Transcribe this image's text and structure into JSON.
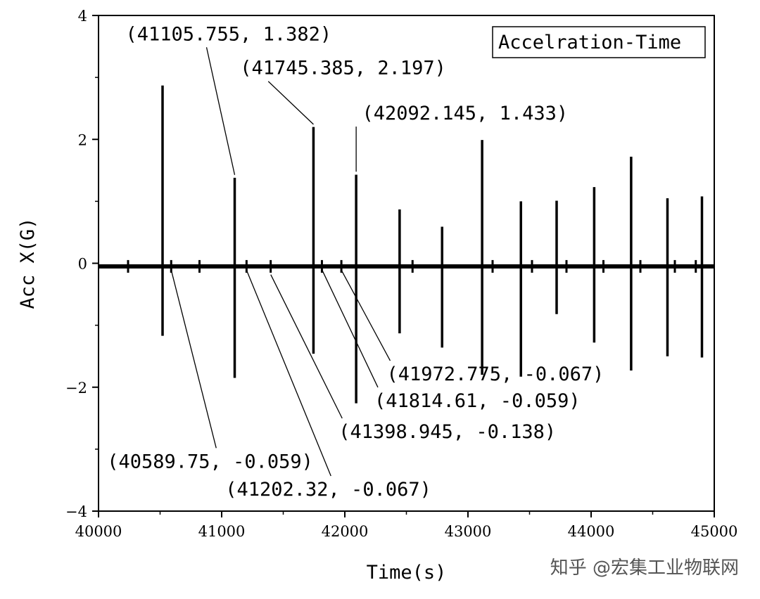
{
  "chart_data": {
    "type": "line",
    "title": "Accelration-Time",
    "xlabel": "Time(s)",
    "ylabel": "Acc X(G)",
    "xlim": [
      40000,
      45000
    ],
    "ylim": [
      -4,
      4
    ],
    "x_ticks": [
      40000,
      41000,
      42000,
      43000,
      44000,
      45000
    ],
    "x_tick_labels": [
      "40000",
      "41000",
      "42000",
      "43000",
      "44000",
      "45000"
    ],
    "y_ticks": [
      -4,
      -2,
      0,
      2,
      4
    ],
    "y_tick_labels": [
      "−4",
      "−2",
      "0",
      "2",
      "4"
    ],
    "grid": false,
    "baseline": -0.05,
    "spikes": [
      {
        "x": 40520,
        "ymax": 2.87,
        "ymin": -1.17
      },
      {
        "x": 41105.755,
        "ymax": 1.38,
        "ymin": -1.85
      },
      {
        "x": 41745.385,
        "ymax": 2.2,
        "ymin": -1.46
      },
      {
        "x": 42092.145,
        "ymax": 1.43,
        "ymin": -2.26
      },
      {
        "x": 42445,
        "ymax": 0.87,
        "ymin": -1.13
      },
      {
        "x": 42790,
        "ymax": 0.59,
        "ymin": -1.36
      },
      {
        "x": 43115,
        "ymax": 1.99,
        "ymin": -1.8
      },
      {
        "x": 43430,
        "ymax": 1.0,
        "ymin": -1.83
      },
      {
        "x": 43720,
        "ymax": 1.01,
        "ymin": -0.82
      },
      {
        "x": 44025,
        "ymax": 1.23,
        "ymin": -1.28
      },
      {
        "x": 44325,
        "ymax": 1.72,
        "ymin": -1.73
      },
      {
        "x": 44620,
        "ymax": 1.05,
        "ymin": -1.5
      },
      {
        "x": 44900,
        "ymax": 1.08,
        "ymin": -1.52
      }
    ],
    "small_bumps": [
      40240,
      40590,
      40820,
      41202,
      41398,
      41814,
      41972,
      42550,
      43200,
      43520,
      43800,
      44100,
      44400,
      44680,
      44850
    ],
    "annotations": [
      {
        "label": "(41105.755, 1.382)",
        "point_x": 41105.755,
        "point_y": 1.382,
        "label_x": 40220,
        "label_y": 3.6
      },
      {
        "label": "(41745.385, 2.197)",
        "point_x": 41745.385,
        "point_y": 2.197,
        "label_x": 41150,
        "label_y": 3.05
      },
      {
        "label": "(42092.145, 1.433)",
        "point_x": 42092.145,
        "point_y": 1.433,
        "label_x": 42140,
        "label_y": 2.32
      },
      {
        "label": "(40589.75, -0.059)",
        "point_x": 40589.75,
        "point_y": -0.059,
        "label_x": 40070,
        "label_y": -3.3
      },
      {
        "label": "(41202.32, -0.067)",
        "point_x": 41202.32,
        "point_y": -0.067,
        "label_x": 41030,
        "label_y": -3.75
      },
      {
        "label": "(41398.945, -0.138)",
        "point_x": 41398.945,
        "point_y": -0.138,
        "label_x": 41950,
        "label_y": -2.82
      },
      {
        "label": "(41814.61, -0.059)",
        "point_x": 41814.61,
        "point_y": -0.059,
        "label_x": 42240,
        "label_y": -2.32
      },
      {
        "label": "(41972.775, -0.067)",
        "point_x": 41972.775,
        "point_y": -0.067,
        "label_x": 42340,
        "label_y": -1.89
      }
    ]
  },
  "watermark": "知乎 @宏集工业物联网"
}
